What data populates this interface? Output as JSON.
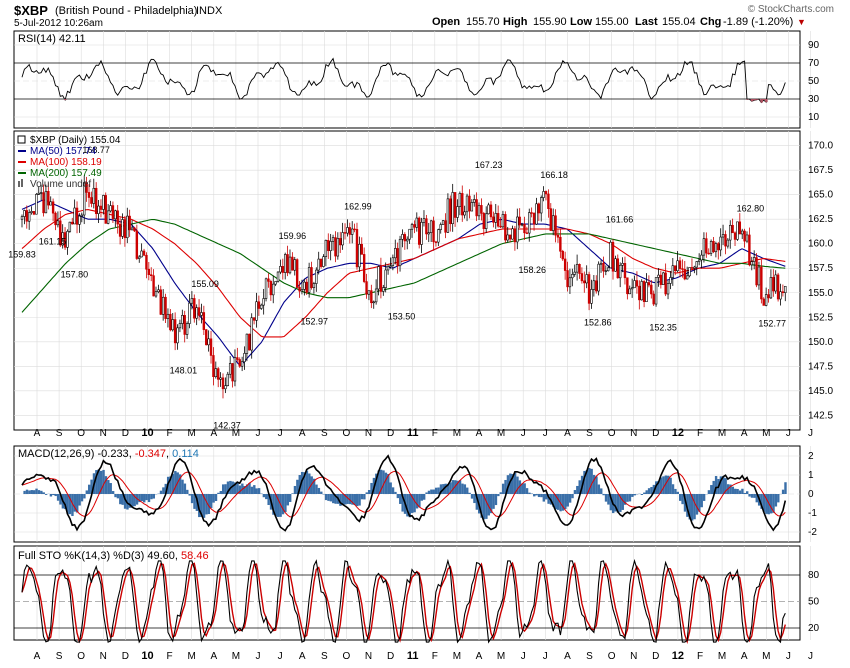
{
  "header": {
    "symbol": "$XBP",
    "name": "(British Pound - Philadelphia)",
    "exchange": "INDX",
    "date": "5-Jul-2012 10:26am",
    "watermark": "© StockCharts.com",
    "open_label": "Open",
    "open": "155.70",
    "high_label": "High",
    "high": "155.90",
    "low_label": "Low",
    "low": "155.00",
    "last_label": "Last",
    "last": "155.04",
    "chg_label": "Chg",
    "chg": "-1.89 (-1.20%)",
    "chg_arrow": "▼"
  },
  "colors": {
    "candle_up": "#000000",
    "candle_down": "#cc0000",
    "ma50": "#00008b",
    "ma100": "#dd0000",
    "ma200": "#006400",
    "macd": "#000000",
    "signal": "#dd0000",
    "hist": "#3a6fa8",
    "sto_k": "#000000",
    "sto_d": "#cc0000",
    "rsi": "#000000",
    "rsi_fill": "#b05060"
  },
  "rsi": {
    "label": "RSI(14)",
    "value": "42.11",
    "ticks": [
      "90",
      "70",
      "50",
      "30",
      "10"
    ]
  },
  "price": {
    "legend": [
      {
        "label": "$XBP (Daily)",
        "value": "155.04"
      },
      {
        "label": "MA(50)",
        "value": "157.74"
      },
      {
        "label": "MA(100)",
        "value": "158.19"
      },
      {
        "label": "MA(200)",
        "value": "157.49"
      },
      {
        "label": "Volume undef",
        "value": ""
      }
    ],
    "ticks": [
      "170.0",
      "167.5",
      "165.0",
      "162.5",
      "160.0",
      "157.5",
      "155.0",
      "152.5",
      "150.0",
      "147.5",
      "145.0",
      "142.5"
    ]
  },
  "macd": {
    "label": "MACD(12,26,9)",
    "v1": "-0.233",
    "v2": "-0.347",
    "v3": "0.114",
    "ticks": [
      "2",
      "1",
      "0",
      "-1",
      "-2"
    ]
  },
  "sto": {
    "label": "Full STO %K(14,3) %D(3)",
    "k": "49.60",
    "d": "58.46",
    "ticks": [
      "80",
      "50",
      "20"
    ]
  },
  "months": [
    "A",
    "S",
    "O",
    "N",
    "D",
    "10",
    "F",
    "M",
    "A",
    "M",
    "J",
    "J",
    "A",
    "S",
    "O",
    "N",
    "D",
    "11",
    "F",
    "M",
    "A",
    "M",
    "J",
    "J",
    "A",
    "S",
    "O",
    "N",
    "D",
    "12",
    "F",
    "M",
    "A",
    "M",
    "J",
    "J"
  ],
  "chart_data": {
    "type": "line",
    "title": "$XBP (British Pound - Philadelphia) INDX",
    "x": [
      "2009-08",
      "2009-09",
      "2009-10",
      "2009-11",
      "2009-12",
      "2010-01",
      "2010-02",
      "2010-03",
      "2010-04",
      "2010-05",
      "2010-06",
      "2010-07",
      "2010-08",
      "2010-09",
      "2010-10",
      "2010-11",
      "2010-12",
      "2011-01",
      "2011-02",
      "2011-03",
      "2011-04",
      "2011-05",
      "2011-06",
      "2011-07",
      "2011-08",
      "2011-09",
      "2011-10",
      "2011-11",
      "2011-12",
      "2012-01",
      "2012-02",
      "2012-03",
      "2012-04",
      "2012-05",
      "2012-06",
      "2012-07"
    ],
    "ylim": [
      141,
      171.5
    ],
    "series": [
      {
        "name": "$XBP (Daily)",
        "values": [
          162.5,
          164.5,
          159.5,
          166.0,
          162.5,
          161.0,
          155.5,
          151.0,
          153.5,
          146.0,
          148.0,
          154.0,
          158.5,
          156.0,
          159.5,
          161.5,
          155.0,
          158.5,
          161.0,
          161.5,
          164.5,
          163.0,
          161.5,
          161.0,
          164.0,
          157.0,
          155.5,
          159.0,
          155.5,
          155.0,
          157.0,
          158.5,
          161.0,
          161.5,
          155.0,
          156.0
        ]
      },
      {
        "name": "MA(50)",
        "values": [
          163.5,
          164.5,
          163.5,
          162.5,
          162.5,
          162.0,
          159.5,
          156.0,
          153.0,
          150.5,
          147.5,
          150.0,
          154.0,
          156.5,
          157.5,
          158.0,
          158.0,
          157.5,
          158.5,
          159.5,
          160.5,
          162.0,
          162.5,
          162.0,
          162.0,
          161.5,
          159.5,
          157.5,
          157.0,
          156.0,
          156.5,
          157.5,
          158.0,
          159.5,
          158.5,
          157.7
        ]
      },
      {
        "name": "MA(100)",
        "values": [
          159.5,
          161.5,
          163.0,
          163.5,
          163.0,
          162.5,
          161.5,
          160.0,
          158.0,
          155.5,
          152.5,
          150.5,
          150.5,
          152.5,
          155.0,
          157.0,
          157.5,
          158.0,
          158.5,
          159.5,
          160.5,
          161.0,
          161.5,
          161.5,
          161.5,
          161.5,
          161.0,
          160.0,
          158.5,
          157.5,
          157.0,
          157.5,
          157.5,
          158.0,
          158.5,
          158.2
        ]
      },
      {
        "name": "MA(200)",
        "values": [
          153.0,
          155.5,
          158.0,
          160.0,
          161.5,
          162.0,
          162.5,
          162.0,
          161.0,
          160.0,
          159.0,
          157.5,
          156.0,
          155.0,
          154.5,
          154.5,
          155.0,
          155.5,
          156.0,
          157.0,
          158.0,
          159.0,
          160.0,
          160.5,
          161.0,
          161.0,
          161.0,
          160.5,
          160.0,
          159.5,
          159.0,
          158.5,
          158.0,
          158.0,
          157.7,
          157.5
        ]
      }
    ],
    "annotations": [
      {
        "x": "2009-07",
        "y": 159.83,
        "text": "159.83"
      },
      {
        "x": "2009-09",
        "y": 161.15,
        "text": "161.15"
      },
      {
        "x": "2009-10",
        "y": 157.8,
        "text": "157.80"
      },
      {
        "x": "2009-11",
        "y": 168.77,
        "text": "168.77"
      },
      {
        "x": "2010-03",
        "y": 148.01,
        "text": "148.01"
      },
      {
        "x": "2010-04",
        "y": 155.09,
        "text": "155.09"
      },
      {
        "x": "2010-05",
        "y": 142.37,
        "text": "142.37"
      },
      {
        "x": "2010-08",
        "y": 159.96,
        "text": "159.96"
      },
      {
        "x": "2010-09",
        "y": 152.97,
        "text": "152.97"
      },
      {
        "x": "2010-11",
        "y": 162.99,
        "text": "162.99"
      },
      {
        "x": "2011-01",
        "y": 153.5,
        "text": "153.50"
      },
      {
        "x": "2011-05",
        "y": 167.23,
        "text": "167.23"
      },
      {
        "x": "2011-07",
        "y": 158.26,
        "text": "158.26"
      },
      {
        "x": "2011-08",
        "y": 166.18,
        "text": "166.18"
      },
      {
        "x": "2011-10",
        "y": 152.86,
        "text": "152.86"
      },
      {
        "x": "2011-11",
        "y": 161.66,
        "text": "161.66"
      },
      {
        "x": "2012-01",
        "y": 152.35,
        "text": "152.35"
      },
      {
        "x": "2012-05",
        "y": 162.8,
        "text": "162.80"
      },
      {
        "x": "2012-06",
        "y": 152.77,
        "text": "152.77"
      }
    ]
  }
}
